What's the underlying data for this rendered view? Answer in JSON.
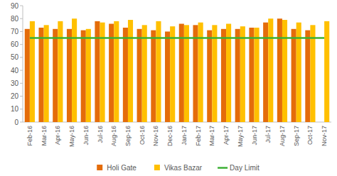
{
  "chart_data": {
    "type": "bar",
    "categories": [
      "Feb-16",
      "Mar-16",
      "Apr-16",
      "May-16",
      "Jun-16",
      "Jul-16",
      "Aug-16",
      "Sep-16",
      "Oct-16",
      "Nov-16",
      "Dec-16",
      "Jan-17",
      "Feb-17",
      "Mar-17",
      "Apr-17",
      "May-17",
      "Jun-17",
      "Jul-17",
      "Aug-17",
      "Sep-17",
      "Oct-17",
      "Nov-17"
    ],
    "series": [
      {
        "name": "Holi Gate",
        "color": "#e46c0a",
        "type": "bar",
        "values": [
          72,
          73,
          72,
          72,
          71,
          78,
          76,
          73,
          72,
          71,
          70,
          76,
          75,
          71,
          72,
          72,
          73,
          77,
          80,
          72,
          71,
          null
        ]
      },
      {
        "name": "Vikas Bazar",
        "color": "#ffc000",
        "type": "bar",
        "values": [
          78,
          75,
          78,
          80,
          72,
          77,
          78,
          79,
          75,
          78,
          74,
          75,
          77,
          75,
          76,
          74,
          73,
          80,
          79,
          77,
          75,
          78
        ]
      },
      {
        "name": "Day Limit",
        "color": "#3cb034",
        "type": "line",
        "values": [
          65,
          65,
          65,
          65,
          65,
          65,
          65,
          65,
          65,
          65,
          65,
          65,
          65,
          65,
          65,
          65,
          65,
          65,
          65,
          65,
          65,
          65
        ]
      }
    ],
    "ylim": [
      0,
      90
    ],
    "yticks": [
      0,
      10,
      20,
      30,
      40,
      50,
      60,
      70,
      80,
      90
    ],
    "grid": false,
    "legend": "bottom"
  }
}
